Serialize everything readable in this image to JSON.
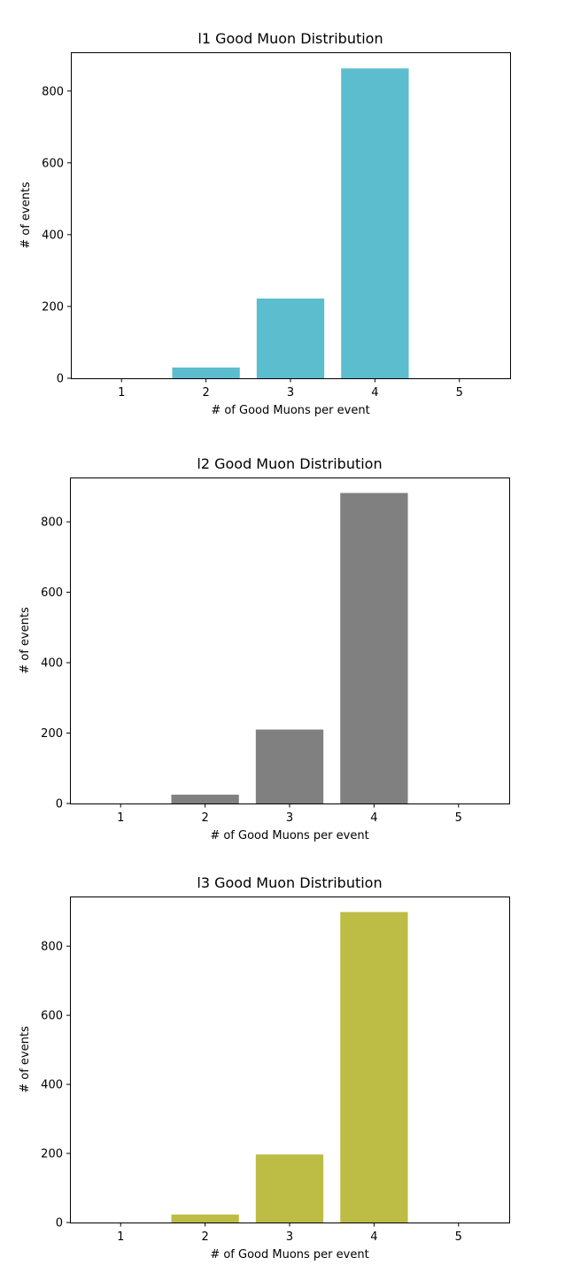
{
  "chart_data": [
    {
      "type": "bar",
      "title": "l1 Good Muon Distribution",
      "xlabel": "# of Good Muons per event",
      "ylabel": "# of events",
      "categories": [
        "1",
        "2",
        "3",
        "4",
        "5"
      ],
      "values": [
        0,
        30,
        222,
        863,
        0
      ],
      "color": "#5bbdcd",
      "ylim": [
        0,
        908
      ],
      "yticks": [
        "0",
        "200",
        "400",
        "600",
        "800"
      ],
      "ytick_values": [
        0,
        200,
        400,
        600,
        800
      ],
      "grid": false,
      "legend": "none"
    },
    {
      "type": "bar",
      "title": "l2 Good Muon Distribution",
      "xlabel": "# of Good Muons per event",
      "ylabel": "# of events",
      "categories": [
        "1",
        "2",
        "3",
        "4",
        "5"
      ],
      "values": [
        0,
        25,
        210,
        882,
        0
      ],
      "color": "#808080",
      "ylim": [
        0,
        926
      ],
      "yticks": [
        "0",
        "200",
        "400",
        "600",
        "800"
      ],
      "ytick_values": [
        0,
        200,
        400,
        600,
        800
      ],
      "grid": false,
      "legend": "none"
    },
    {
      "type": "bar",
      "title": "l3 Good Muon Distribution",
      "xlabel": "# of Good Muons per event",
      "ylabel": "# of events",
      "categories": [
        "1",
        "2",
        "3",
        "4",
        "5"
      ],
      "values": [
        0,
        23,
        197,
        899,
        0
      ],
      "color": "#bdbc44",
      "ylim": [
        0,
        944
      ],
      "yticks": [
        "0",
        "200",
        "400",
        "600",
        "800"
      ],
      "ytick_values": [
        0,
        200,
        400,
        600,
        800
      ],
      "grid": false,
      "legend": "none"
    }
  ]
}
